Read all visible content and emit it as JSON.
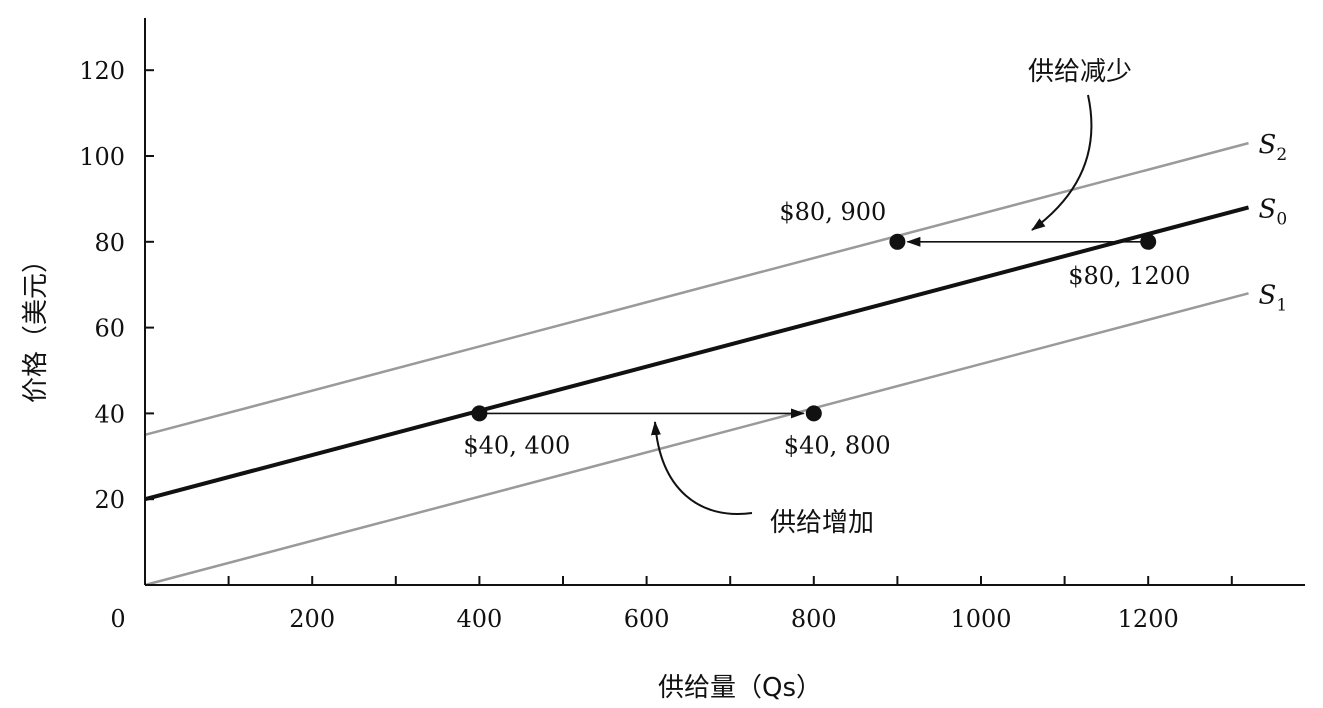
{
  "chart_data": {
    "type": "line",
    "title": "",
    "xlabel": "供给量（Qs）",
    "ylabel": "价格（美元）",
    "xlim": [
      0,
      1380
    ],
    "ylim": [
      0,
      135
    ],
    "x_ticks": [
      0,
      200,
      400,
      600,
      800,
      1000,
      1200
    ],
    "y_ticks": [
      20,
      40,
      60,
      80,
      100,
      120
    ],
    "x_tick_labels": [
      "0",
      "200",
      "400",
      "600",
      "800",
      "1000",
      "1200"
    ],
    "y_tick_labels": [
      "20",
      "40",
      "60",
      "80",
      "100",
      "120"
    ],
    "grid": false,
    "series": [
      {
        "name": "S",
        "subscript": "2",
        "color": "#9a9a9a",
        "points": [
          [
            0,
            35
          ],
          [
            1320,
            103
          ]
        ]
      },
      {
        "name": "S",
        "subscript": "0",
        "color": "#111111",
        "points": [
          [
            0,
            20
          ],
          [
            1320,
            88
          ]
        ]
      },
      {
        "name": "S",
        "subscript": "1",
        "color": "#9a9a9a",
        "points": [
          [
            0,
            0
          ],
          [
            1320,
            68
          ]
        ]
      }
    ],
    "points": [
      {
        "x": 400,
        "y": 40,
        "label": "$40, 400"
      },
      {
        "x": 800,
        "y": 40,
        "label": "$40, 800"
      },
      {
        "x": 900,
        "y": 80,
        "label": "$80, 900"
      },
      {
        "x": 1200,
        "y": 80,
        "label": "$80, 1200"
      }
    ],
    "arrows": [
      {
        "from": [
          400,
          40
        ],
        "to": [
          800,
          40
        ]
      },
      {
        "from": [
          1200,
          80
        ],
        "to": [
          900,
          80
        ]
      }
    ],
    "annotations": [
      {
        "text": "供给增加"
      },
      {
        "text": "供给减少"
      }
    ]
  }
}
